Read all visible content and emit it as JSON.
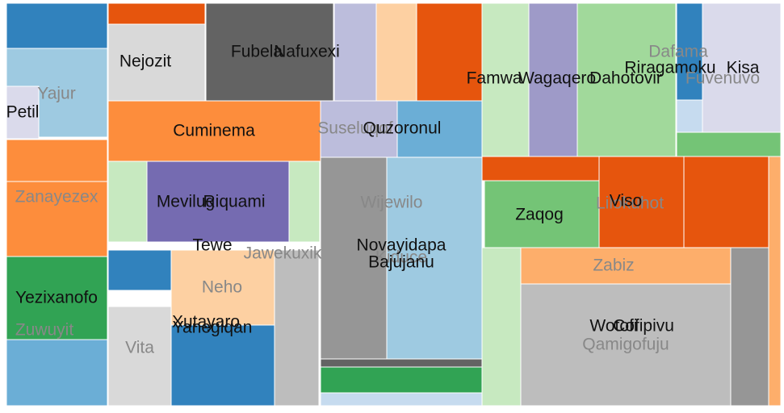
{
  "chart_data": {
    "type": "treemap",
    "colors": [
      "#3182bd",
      "#9ecae1",
      "#dadaeb",
      "#fd8d3c",
      "#fd8d3c",
      "#31a354",
      "#6baed6",
      "#e6550d",
      "#d9d9d9",
      "#636363",
      "#bcbddc",
      "#fdd0a2",
      "#e6550d",
      "#fd8d3c",
      "#c7e9c0",
      "#756bb1",
      "#c7e9c0",
      "#bcbddc",
      "#6baed6",
      "#3182bd",
      "#d9d9d9",
      "#fdd0a2",
      "#3182bd",
      "#bdbdbd",
      "#969696",
      "#9ecae1",
      "#636363",
      "#31a354",
      "#c6dbef",
      "#c7e9c0",
      "#9e9ac8",
      "#a1d99b",
      "#3182bd",
      "#c6dbef",
      "#dadaeb",
      "#74c476",
      "#e6550d",
      "#74c476",
      "#e6550d",
      "#e6550d",
      "#fdae6b",
      "#c7e9c0",
      "#fdae6b",
      "#bdbdbd",
      "#969696"
    ],
    "labels": [
      "Yajur",
      "Petil",
      "Zanayezex",
      "Yezixanofo",
      "Zuwuyit",
      "Nejozit",
      "Fubela",
      "Nafuxexi",
      "Cuminema",
      "Mevilug",
      "Riquami",
      "Suseluqof",
      "Quzoronul",
      "Vita",
      "Neho",
      "Xutayaro",
      "Yanegiqan",
      "Tewe",
      "Jawekuxik",
      "Wijewilo",
      "Kiduce",
      "Novayidapa",
      "Bajujanu",
      "Famwa",
      "Wagaqero",
      "Dahotovir",
      "Dafama",
      "Riragamoku",
      "Kisa",
      "Fuvenuvo",
      "Zaqog",
      "Lilokuhot",
      "Viso",
      "Zabiz",
      "Wotofi",
      "Cofipivu",
      "Qamigofuju"
    ]
  }
}
